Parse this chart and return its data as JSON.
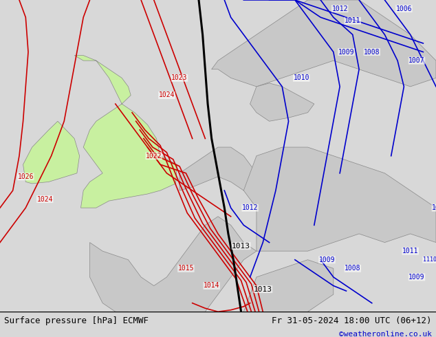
{
  "title_left": "Surface pressure [hPa] ECMWF",
  "title_right": "Fr 31-05-2024 18:00 UTC (06+12)",
  "copyright": "©weatheronline.co.uk",
  "bg_color": "#d8d8d8",
  "land_green": "#c8f0a0",
  "land_grey": "#c8c8c8",
  "isobar_red_color": "#cc0000",
  "isobar_blue_color": "#0000cc",
  "isobar_black_color": "#000000",
  "font_color_bottom": "#000000",
  "copyright_color": "#0000cc",
  "bottom_bar_color": "#ffffff",
  "label_fontsize": 7,
  "title_fontsize": 9,
  "figsize": [
    6.34,
    4.9
  ],
  "dpi": 100
}
